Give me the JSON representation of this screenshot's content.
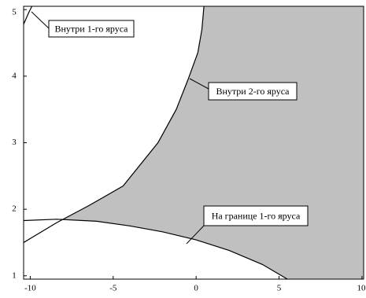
{
  "chart_data": {
    "type": "region",
    "xlim": [
      -10.4,
      10.1
    ],
    "ylim": [
      0.95,
      5.05
    ],
    "xticks": [
      -10,
      -5,
      0,
      5,
      10
    ],
    "yticks": [
      1,
      2,
      3,
      4,
      5
    ],
    "fill_color": "#c0c0c0",
    "line_color": "#000000",
    "series": [
      {
        "x": [
          0.47,
          0.35,
          0.1,
          -0.5,
          -1.2,
          -2.3,
          -4.4,
          -6.5,
          -8.4,
          -10.4
        ],
        "values": [
          5.05,
          4.7,
          4.35,
          3.94,
          3.5,
          3.0,
          2.35,
          2.05,
          1.8,
          1.5
        ]
      },
      {
        "x": [
          -10.4,
          -8.4,
          -6,
          -4,
          -2,
          0,
          2,
          4,
          5.5
        ],
        "values": [
          1.83,
          1.85,
          1.82,
          1.75,
          1.66,
          1.54,
          1.38,
          1.17,
          0.95
        ]
      },
      {
        "x": [
          -10.4,
          -10.1,
          -9.9
        ],
        "values": [
          4.78,
          4.95,
          5.05
        ]
      }
    ],
    "annotations": [
      "Внутри 1-го яруса",
      "Внутри 2-го яруса",
      "На границе 1-го яруса"
    ]
  }
}
